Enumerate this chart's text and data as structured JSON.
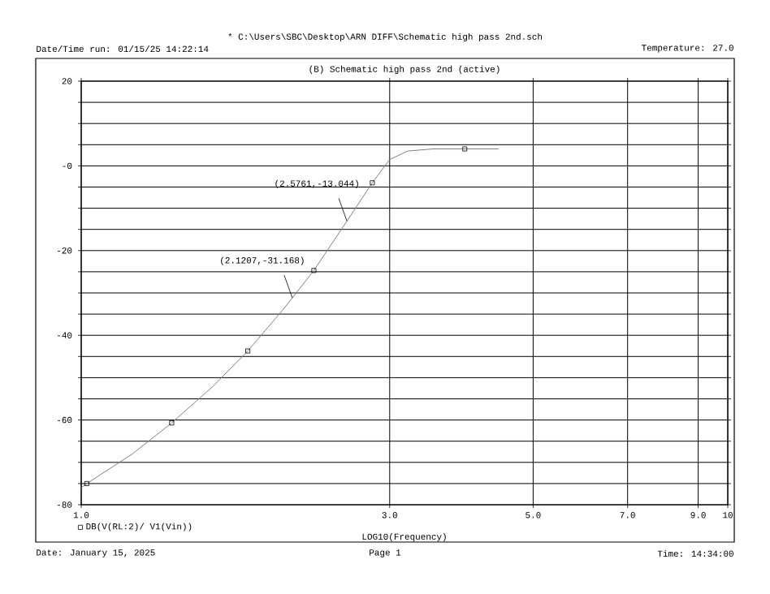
{
  "chart_data": {
    "type": "line",
    "title": "(B) Schematic high pass 2nd (active)",
    "xlabel": "LOG10(Frequency)",
    "annotations": [
      "* C:\\Users\\SBC\\Desktop\\ARN DIFF\\Schematic high pass 2nd.sch",
      "Date/Time run: 01/15/25 14:22:14",
      "Temperature: 27.0",
      "Date: January 15, 2025",
      "Page 1",
      "Time: 14:34:00",
      {
        "text": "(2.5761,-13.044)",
        "x": 2.5761,
        "y": -13.044
      },
      {
        "text": "(2.1207,-31.168)",
        "x": 2.1207,
        "y": -31.168
      }
    ],
    "log": "x",
    "xlim": [
      1,
      10
    ],
    "ylim": [
      -80,
      20
    ],
    "xticks": [
      {
        "value": 1,
        "label": "1.0"
      },
      {
        "value": 3,
        "label": "3.0"
      },
      {
        "value": 5,
        "label": "5.0"
      },
      {
        "value": 7,
        "label": "7.0"
      },
      {
        "value": 9,
        "label": "9.0"
      },
      10
    ],
    "yticks": [
      20,
      {
        "value": 15,
        "label": null
      },
      {
        "value": 10,
        "label": null
      },
      {
        "value": 5,
        "label": null
      },
      {
        "value": 0,
        "label": "-0"
      },
      {
        "value": -5,
        "label": null
      },
      {
        "value": -10,
        "label": null
      },
      {
        "value": -15,
        "label": null
      },
      -20,
      {
        "value": -25,
        "label": null
      },
      {
        "value": -30,
        "label": null
      },
      {
        "value": -35,
        "label": null
      },
      -40,
      {
        "value": -45,
        "label": null
      },
      {
        "value": -50,
        "label": null
      },
      {
        "value": -55,
        "label": null
      },
      -60,
      {
        "value": -65,
        "label": null
      },
      {
        "value": -70,
        "label": null
      },
      {
        "value": -75,
        "label": null
      },
      -80
    ],
    "grid": true,
    "legend": "bottom left",
    "series": [
      {
        "color": "#808080",
        "marker": "none",
        "x": [
          1.0,
          1.02,
          1.2,
          1.38,
          1.6,
          1.81,
          2.05,
          2.1207,
          2.29,
          2.5761,
          2.82,
          3.0,
          3.2,
          3.5,
          3.92,
          4.42
        ],
        "values": [
          -76,
          -75,
          -68,
          -60.7,
          -52,
          -43.7,
          -34,
          -31.168,
          -24.7,
          -13.044,
          -4,
          1.5,
          3.5,
          4,
          4,
          4
        ]
      },
      {
        "type": "scatter",
        "name": "DB(V(RL:2)/ V1(Vin))",
        "color": "#000000",
        "marker": "square",
        "x": [
          1.02,
          1.38,
          1.81,
          2.29,
          2.82,
          3.92
        ],
        "values": [
          -75,
          -60.7,
          -43.7,
          -24.7,
          -4,
          4
        ]
      }
    ]
  }
}
